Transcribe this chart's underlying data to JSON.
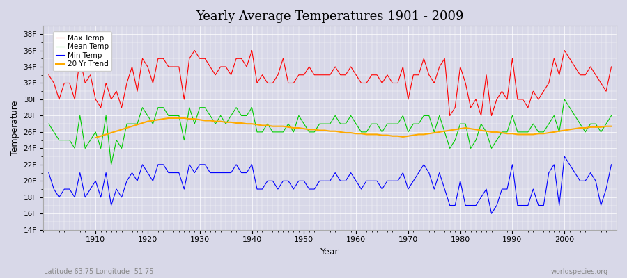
{
  "title": "Yearly Average Temperatures 1901 - 2009",
  "xlabel": "Year",
  "ylabel": "Temperature",
  "footnote_left": "Latitude 63.75 Longitude -51.75",
  "footnote_right": "worldspecies.org",
  "legend": [
    "Max Temp",
    "Mean Temp",
    "Min Temp",
    "20 Yr Trend"
  ],
  "legend_colors": [
    "#ff0000",
    "#00cc00",
    "#0000ff",
    "#ffaa00"
  ],
  "start_year": 1901,
  "end_year": 2009,
  "ylim": [
    14,
    39
  ],
  "ytick_step": 2,
  "background_color": "#d8d8e8",
  "plot_bg_color": "#d8d8e8",
  "grid_color": "#ffffff",
  "max_temps": [
    33,
    32,
    30,
    32,
    32,
    30,
    35,
    32,
    33,
    30,
    29,
    32,
    30,
    31,
    29,
    32,
    34,
    31,
    35,
    34,
    32,
    35,
    35,
    34,
    34,
    34,
    30,
    35,
    36,
    35,
    35,
    34,
    33,
    34,
    34,
    33,
    35,
    35,
    34,
    36,
    32,
    33,
    32,
    32,
    33,
    35,
    32,
    32,
    33,
    33,
    34,
    33,
    33,
    33,
    33,
    34,
    33,
    33,
    34,
    33,
    32,
    32,
    33,
    33,
    32,
    33,
    32,
    32,
    34,
    30,
    33,
    33,
    35,
    33,
    32,
    34,
    35,
    28,
    29,
    34,
    32,
    29,
    30,
    28,
    33,
    28,
    30,
    31,
    30,
    35,
    30,
    30,
    29,
    31,
    30,
    31,
    32,
    35,
    33,
    36,
    35,
    34,
    33,
    33,
    34,
    33,
    32,
    31,
    34
  ],
  "mean_temps": [
    27,
    26,
    25,
    25,
    25,
    24,
    28,
    24,
    25,
    26,
    24,
    28,
    22,
    25,
    24,
    27,
    27,
    27,
    29,
    28,
    27,
    29,
    29,
    28,
    28,
    28,
    25,
    29,
    27,
    29,
    29,
    28,
    27,
    28,
    27,
    28,
    29,
    28,
    28,
    29,
    26,
    26,
    27,
    26,
    26,
    26,
    27,
    26,
    28,
    27,
    26,
    26,
    27,
    27,
    27,
    28,
    27,
    27,
    28,
    27,
    26,
    26,
    27,
    27,
    26,
    27,
    27,
    27,
    28,
    26,
    27,
    27,
    28,
    28,
    26,
    28,
    26,
    24,
    25,
    27,
    27,
    24,
    25,
    27,
    26,
    24,
    25,
    26,
    26,
    28,
    26,
    26,
    26,
    27,
    26,
    26,
    27,
    28,
    26,
    30,
    29,
    28,
    27,
    26,
    27,
    27,
    26,
    27,
    28
  ],
  "min_temps": [
    21,
    19,
    18,
    19,
    19,
    18,
    21,
    18,
    19,
    20,
    18,
    21,
    17,
    19,
    18,
    20,
    21,
    20,
    22,
    21,
    20,
    22,
    22,
    21,
    21,
    21,
    19,
    22,
    21,
    22,
    22,
    21,
    21,
    21,
    21,
    21,
    22,
    21,
    21,
    22,
    19,
    19,
    20,
    20,
    19,
    20,
    20,
    19,
    20,
    20,
    19,
    19,
    20,
    20,
    20,
    21,
    20,
    20,
    21,
    20,
    19,
    20,
    20,
    20,
    19,
    20,
    20,
    20,
    21,
    19,
    20,
    21,
    22,
    21,
    19,
    21,
    19,
    17,
    17,
    20,
    17,
    17,
    17,
    18,
    19,
    16,
    17,
    19,
    19,
    22,
    17,
    17,
    17,
    19,
    17,
    17,
    21,
    22,
    17,
    23,
    22,
    21,
    20,
    20,
    21,
    20,
    17,
    19,
    22
  ],
  "trend_years": [
    1910,
    1911,
    1912,
    1913,
    1914,
    1915,
    1916,
    1917,
    1918,
    1919,
    1920,
    1921,
    1922,
    1923,
    1924,
    1925,
    1926,
    1927,
    1928,
    1929,
    1930,
    1931,
    1932,
    1933,
    1934,
    1935,
    1936,
    1937,
    1938,
    1939,
    1940,
    1941,
    1942,
    1943,
    1944,
    1945,
    1946,
    1947,
    1948,
    1949,
    1950,
    1951,
    1952,
    1953,
    1954,
    1955,
    1956,
    1957,
    1958,
    1959,
    1960,
    1961,
    1962,
    1963,
    1964,
    1965,
    1966,
    1967,
    1968,
    1969,
    1970,
    1971,
    1972,
    1973,
    1974,
    1975,
    1976,
    1977,
    1978,
    1979,
    1980,
    1981,
    1982,
    1983,
    1984,
    1985,
    1986,
    1987,
    1988,
    1989,
    1990,
    1991,
    1992,
    1993,
    1994,
    1995,
    1996,
    1997,
    1998,
    1999,
    2000,
    2001,
    2002,
    2003,
    2004,
    2005,
    2006,
    2007,
    2008,
    2009
  ],
  "trend_vals": [
    25.3,
    25.5,
    25.7,
    25.9,
    26.1,
    26.3,
    26.5,
    26.7,
    26.9,
    27.1,
    27.3,
    27.4,
    27.5,
    27.6,
    27.7,
    27.7,
    27.7,
    27.7,
    27.6,
    27.6,
    27.5,
    27.4,
    27.4,
    27.3,
    27.3,
    27.2,
    27.2,
    27.1,
    27.1,
    27.0,
    27.0,
    26.9,
    26.8,
    26.8,
    26.7,
    26.7,
    26.7,
    26.6,
    26.5,
    26.5,
    26.4,
    26.3,
    26.3,
    26.2,
    26.2,
    26.1,
    26.1,
    26.0,
    25.9,
    25.9,
    25.8,
    25.8,
    25.7,
    25.7,
    25.7,
    25.6,
    25.6,
    25.5,
    25.5,
    25.4,
    25.5,
    25.6,
    25.7,
    25.7,
    25.8,
    25.9,
    26.0,
    26.1,
    26.2,
    26.3,
    26.4,
    26.5,
    26.4,
    26.3,
    26.2,
    26.1,
    26.0,
    26.0,
    25.9,
    25.8,
    25.8,
    25.7,
    25.7,
    25.7,
    25.7,
    25.8,
    25.8,
    25.9,
    26.0,
    26.1,
    26.2,
    26.3,
    26.4,
    26.5,
    26.5,
    26.6,
    26.6,
    26.6,
    26.7,
    26.7
  ]
}
